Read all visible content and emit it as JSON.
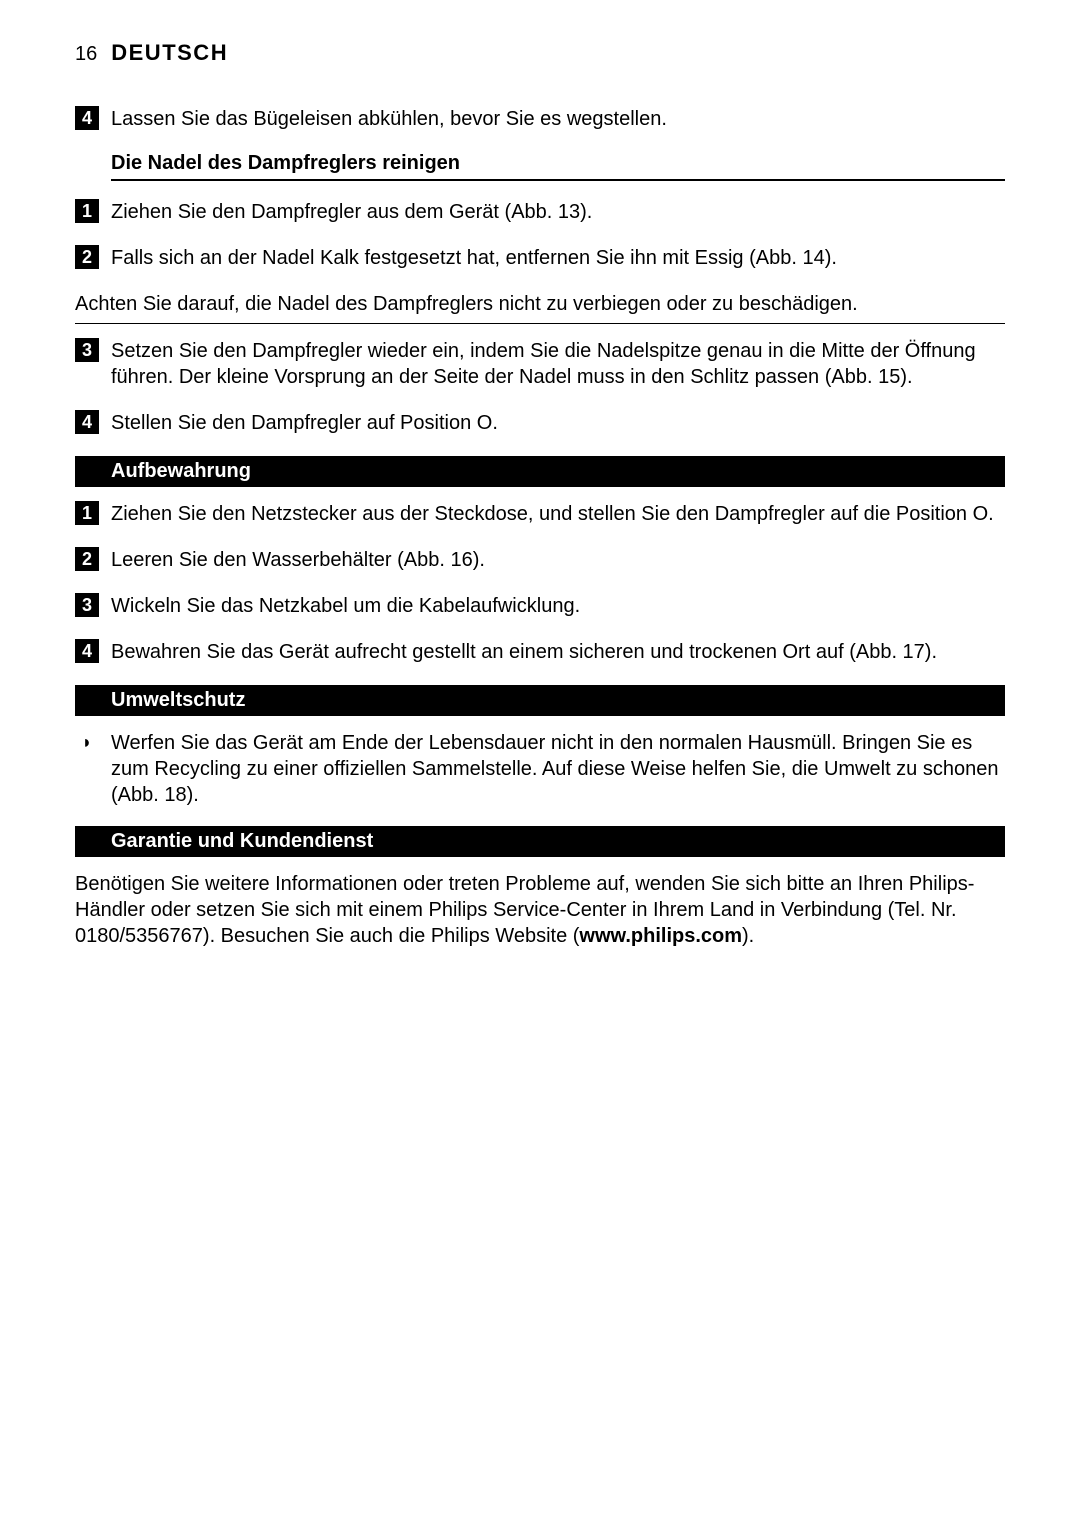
{
  "header": {
    "page_number": "16",
    "title": "DEUTSCH"
  },
  "intro_step": {
    "num": "4",
    "text": "Lassen Sie das Bügeleisen abkühlen, bevor Sie es wegstellen."
  },
  "sub1": {
    "heading": "Die Nadel des Dampfreglers reinigen",
    "steps": [
      {
        "num": "1",
        "text": "Ziehen Sie den Dampfregler aus dem Gerät (Abb. 13)."
      },
      {
        "num": "2",
        "text": "Falls sich an der Nadel Kalk festgesetzt hat, entfernen Sie ihn mit Essig (Abb. 14)."
      }
    ],
    "note": "Achten Sie darauf, die Nadel des Dampfreglers nicht zu verbiegen oder zu beschädigen.",
    "steps_after": [
      {
        "num": "3",
        "text": "Setzen Sie den Dampfregler wieder ein, indem Sie die Nadelspitze genau in die Mitte der Öffnung führen. Der kleine Vorsprung an der Seite der Nadel muss in den Schlitz passen (Abb. 15)."
      },
      {
        "num": "4",
        "text": "Stellen Sie den Dampfregler auf Position O."
      }
    ]
  },
  "section_storage": {
    "title": "Aufbewahrung",
    "steps": [
      {
        "num": "1",
        "text": "Ziehen Sie den Netzstecker aus der Steckdose, und stellen Sie den Dampfregler auf die Position O."
      },
      {
        "num": "2",
        "text": "Leeren Sie den Wasserbehälter (Abb. 16)."
      },
      {
        "num": "3",
        "text": "Wickeln Sie das Netzkabel um die Kabelaufwicklung."
      },
      {
        "num": "4",
        "text": "Bewahren Sie das Gerät aufrecht gestellt an einem sicheren und trockenen Ort auf (Abb. 17)."
      }
    ]
  },
  "section_env": {
    "title": "Umweltschutz",
    "bullet_mark": "◗",
    "bullet_text": "Werfen Sie das Gerät am Ende der Lebensdauer nicht in den normalen Hausmüll. Bringen Sie es zum Recycling zu einer offiziellen Sammelstelle. Auf diese Weise helfen Sie, die Umwelt zu schonen (Abb. 18)."
  },
  "section_warranty": {
    "title": "Garantie und Kundendienst",
    "para_before": "Benötigen Sie weitere Informationen oder treten Probleme auf, wenden Sie sich bitte an Ihren Philips-Händler oder setzen Sie sich mit einem Philips Service-Center in Ihrem Land in Verbindung (Tel. Nr. 0180/5356767). Besuchen Sie auch die Philips Website (",
    "url": "www.philips.com",
    "para_after": ")."
  }
}
